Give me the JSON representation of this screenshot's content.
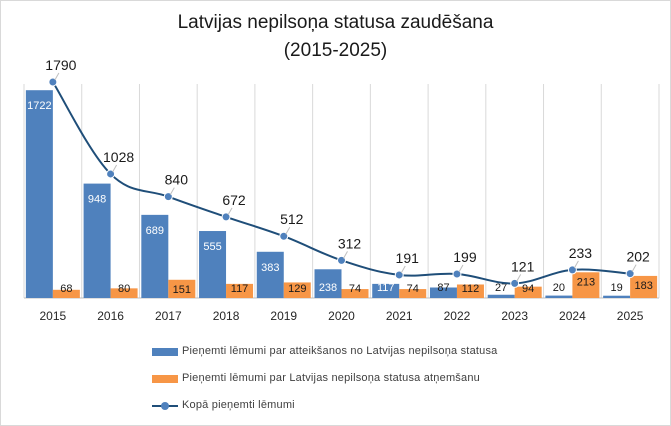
{
  "chart_data": {
    "type": "bar",
    "title": "Latvijas nepilsoņa statusa zaudēšana",
    "subtitle": "(2015-2025)",
    "categories": [
      "2015",
      "2016",
      "2017",
      "2018",
      "2019",
      "2020",
      "2021",
      "2022",
      "2023",
      "2024",
      "2025"
    ],
    "series": [
      {
        "name": "Pieņemti lēmumi par atteikšanos no Latvijas nepilsoņa statusa",
        "type": "bar",
        "color": "#4f81bd",
        "values": [
          1722,
          948,
          689,
          555,
          383,
          238,
          117,
          87,
          27,
          20,
          19
        ]
      },
      {
        "name": "Pieņemti lēmumi par Latvijas nepilsoņa statusa atņemšanu",
        "type": "bar",
        "color": "#f79646",
        "values": [
          68,
          80,
          151,
          117,
          129,
          74,
          74,
          112,
          94,
          213,
          183
        ]
      },
      {
        "name": "Kopā pieņemti lēmumi",
        "type": "line",
        "color": "#4f81bd",
        "line_color": "#1f4e79",
        "values": [
          1790,
          1028,
          840,
          672,
          512,
          312,
          191,
          199,
          121,
          233,
          202
        ]
      }
    ],
    "ylim": [
      0,
      1790
    ],
    "grid": true,
    "legend_position": "bottom"
  }
}
